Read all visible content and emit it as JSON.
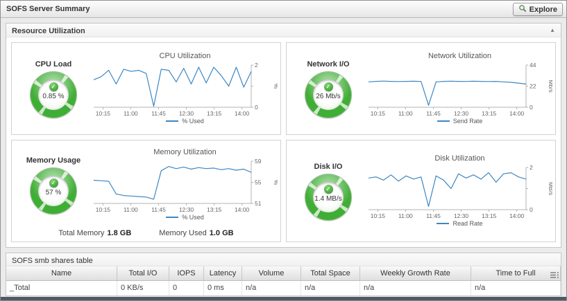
{
  "titlebar": {
    "title": "SOFS Server Summary",
    "explore_label": "Explore"
  },
  "icons": {
    "collapse": "▲",
    "status_ok": "✓",
    "explore": "magnifier-icon",
    "column_chooser": "column-list-icon"
  },
  "resource_panel": {
    "title": "Resource Utilization"
  },
  "gauges": [
    {
      "title": "CPU Load",
      "value": "0.85 %"
    },
    {
      "title": "Network I/O",
      "value": "26 Mb/s"
    },
    {
      "title": "Memory Usage",
      "value": "57 %"
    },
    {
      "title": "Disk I/O",
      "value": "1.4 MB/s"
    }
  ],
  "memory_footer": {
    "total_label": "Total Memory",
    "total_value": "1.8 GB",
    "used_label": "Memory Used",
    "used_value": "1.0 GB"
  },
  "chart_data": [
    {
      "type": "line",
      "title": "CPU Utilization",
      "ylabel": "%",
      "legend": "% Used",
      "ylim": [
        0,
        2
      ],
      "yticks": [
        [
          2,
          "2"
        ],
        [
          1,
          ""
        ],
        [
          0,
          "0"
        ]
      ],
      "xticks": [
        [
          0.059,
          "10:15"
        ],
        [
          0.235,
          "11:00"
        ],
        [
          0.412,
          "11:45"
        ],
        [
          0.588,
          "12:30"
        ],
        [
          0.765,
          "13:15"
        ],
        [
          0.941,
          "14:00"
        ]
      ],
      "values": [
        1.3,
        1.45,
        1.75,
        1.1,
        1.8,
        1.7,
        1.75,
        1.6,
        0.05,
        1.8,
        1.75,
        1.2,
        1.85,
        1.1,
        1.9,
        1.15,
        1.9,
        1.5,
        1.0,
        1.9,
        0.95,
        1.7
      ],
      "line_color": "#3b87c4",
      "legend_position": "bottom",
      "grid": false
    },
    {
      "type": "line",
      "title": "Network Utilization",
      "ylabel": "Mb/s",
      "legend": "Send Rate",
      "ylim": [
        0,
        44
      ],
      "yticks": [
        [
          44,
          "44"
        ],
        [
          22,
          "22"
        ],
        [
          0,
          "0"
        ]
      ],
      "xticks": [
        [
          0.059,
          "10:15"
        ],
        [
          0.235,
          "11:00"
        ],
        [
          0.412,
          "11:45"
        ],
        [
          0.588,
          "12:30"
        ],
        [
          0.765,
          "13:15"
        ],
        [
          0.941,
          "14:00"
        ]
      ],
      "values": [
        26.5,
        27,
        27.3,
        27,
        26.8,
        27,
        27.1,
        26.9,
        2,
        26.5,
        27,
        27.2,
        27,
        26.9,
        27.1,
        27,
        26.8,
        27,
        26.5,
        26,
        25.2,
        24.2
      ],
      "line_color": "#3b87c4",
      "legend_position": "bottom",
      "grid": false
    },
    {
      "type": "line",
      "title": "Memory Utilization",
      "ylabel": "%",
      "legend": "% Used",
      "ylim": [
        51,
        59
      ],
      "yticks": [
        [
          59,
          "59"
        ],
        [
          55,
          "55"
        ],
        [
          51,
          "51"
        ]
      ],
      "xticks": [
        [
          0.059,
          "10:15"
        ],
        [
          0.235,
          "11:00"
        ],
        [
          0.412,
          "11:45"
        ],
        [
          0.588,
          "12:30"
        ],
        [
          0.765,
          "13:15"
        ],
        [
          0.941,
          "14:00"
        ]
      ],
      "values": [
        55.4,
        55.3,
        55.2,
        52.8,
        52.5,
        52.4,
        52.3,
        52.2,
        51.8,
        57.2,
        58,
        57.6,
        57.9,
        57.5,
        57.8,
        57.6,
        57.7,
        57.4,
        57.6,
        57.3,
        57.5,
        56.9
      ],
      "line_color": "#3b87c4",
      "legend_position": "bottom",
      "grid": false
    },
    {
      "type": "line",
      "title": "Disk Utilization",
      "ylabel": "MB/s",
      "legend": "Read Rate",
      "ylim": [
        0,
        2
      ],
      "yticks": [
        [
          2,
          "2"
        ],
        [
          1,
          ""
        ],
        [
          0,
          "0"
        ]
      ],
      "xticks": [
        [
          0.059,
          "10:15"
        ],
        [
          0.235,
          "11:00"
        ],
        [
          0.412,
          "11:45"
        ],
        [
          0.588,
          "12:30"
        ],
        [
          0.765,
          "13:15"
        ],
        [
          0.941,
          "14:00"
        ]
      ],
      "values": [
        1.5,
        1.55,
        1.4,
        1.65,
        1.35,
        1.6,
        1.45,
        1.55,
        0.15,
        1.6,
        1.4,
        1.0,
        1.7,
        1.5,
        1.65,
        1.45,
        1.75,
        1.3,
        1.7,
        1.75,
        1.55,
        1.45
      ],
      "line_color": "#3b87c4",
      "legend_position": "bottom",
      "grid": false
    }
  ],
  "table_panel": {
    "title": "SOFS smb shares table",
    "columns": [
      "Name",
      "Total I/O",
      "IOPS",
      "Latency",
      "Volume",
      "Total Space",
      "Weekly Growth Rate",
      "Time to Full"
    ],
    "rows": [
      [
        "_Total",
        "0 KB/s",
        "0",
        "0 ms",
        "n/a",
        "n/a",
        "n/a",
        "n/a"
      ]
    ]
  }
}
